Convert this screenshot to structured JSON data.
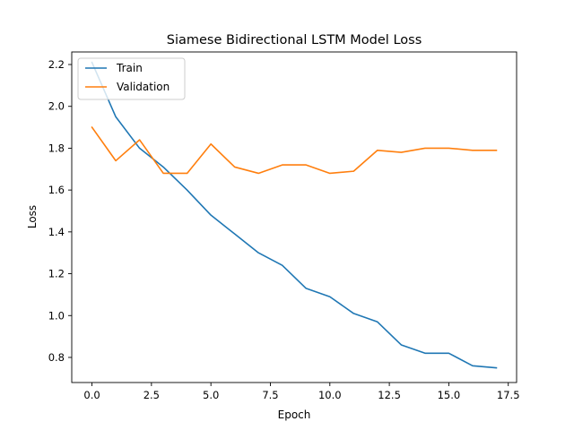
{
  "chart_data": {
    "type": "line",
    "title": "Siamese Bidirectional LSTM Model Loss",
    "xlabel": "Epoch",
    "ylabel": "Loss",
    "xlim": [
      -0.85,
      17.85
    ],
    "ylim": [
      0.68,
      2.26
    ],
    "x_ticks": [
      0.0,
      2.5,
      5.0,
      7.5,
      10.0,
      12.5,
      15.0,
      17.5
    ],
    "x_tick_labels": [
      "0.0",
      "2.5",
      "5.0",
      "7.5",
      "10.0",
      "12.5",
      "15.0",
      "17.5"
    ],
    "y_ticks": [
      0.8,
      1.0,
      1.2,
      1.4,
      1.6,
      1.8,
      2.0,
      2.2
    ],
    "y_tick_labels": [
      "0.8",
      "1.0",
      "1.2",
      "1.4",
      "1.6",
      "1.8",
      "2.0",
      "2.2"
    ],
    "grid": false,
    "legend_position": "upper-left",
    "x": [
      0,
      1,
      2,
      3,
      4,
      5,
      6,
      7,
      8,
      9,
      10,
      11,
      12,
      13,
      14,
      15,
      16,
      17
    ],
    "series": [
      {
        "name": "Train",
        "color": "#1f77b4",
        "values": [
          2.21,
          1.95,
          1.8,
          1.71,
          1.6,
          1.48,
          1.39,
          1.3,
          1.24,
          1.13,
          1.09,
          1.01,
          0.97,
          0.86,
          0.82,
          0.82,
          0.76,
          0.75
        ]
      },
      {
        "name": "Validation",
        "color": "#ff7f0e",
        "values": [
          1.9,
          1.74,
          1.84,
          1.68,
          1.68,
          1.82,
          1.71,
          1.68,
          1.72,
          1.72,
          1.68,
          1.69,
          1.79,
          1.78,
          1.8,
          1.8,
          1.79,
          1.79
        ]
      }
    ]
  }
}
